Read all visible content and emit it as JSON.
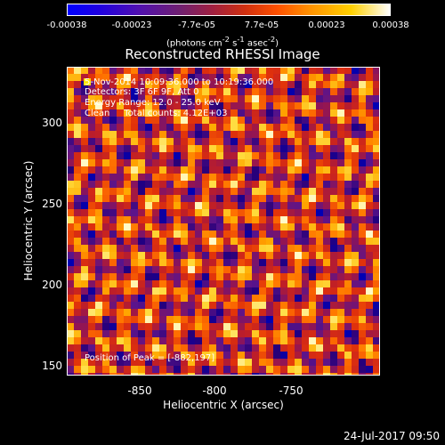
{
  "colorbar": {
    "ticks": [
      "-0.00038",
      "-0.00023",
      "-7.7e-05",
      "7.7e-05",
      "0.00023",
      "0.00038"
    ],
    "units_prefix": "(photons cm",
    "units_exp1": "-2",
    "units_mid": " s",
    "units_exp2": "-1",
    "units_mid2": " asec",
    "units_exp3": "-2",
    "units_suffix": ")"
  },
  "chart_data": {
    "type": "heatmap",
    "title": "Reconstructed RHESSI Image",
    "xlabel": "Heliocentric X (arcsec)",
    "ylabel": "Heliocentric Y (arcsec)",
    "xlim": [
      -895,
      -792
    ],
    "ylim": [
      147,
      340
    ],
    "xticks": [
      "-850",
      "-800",
      "-750"
    ],
    "yticks": [
      "150",
      "200",
      "250",
      "300"
    ],
    "colorscale_range": [
      -0.00038,
      0.00038
    ],
    "peak_position": [
      -882,
      197
    ],
    "annotations": [
      "5-Nov-2014 10:09:36.000 to 10:19:36.000",
      "Detectors: 3F 6F 9F, Att 0",
      "Energy Range: 12.0 - 25.0 keV",
      "Clean     Total counts: 4.12E+03",
      "Position of Peak = [-882,197]"
    ]
  },
  "footer": {
    "date": "24-Jul-2017 09:50"
  }
}
